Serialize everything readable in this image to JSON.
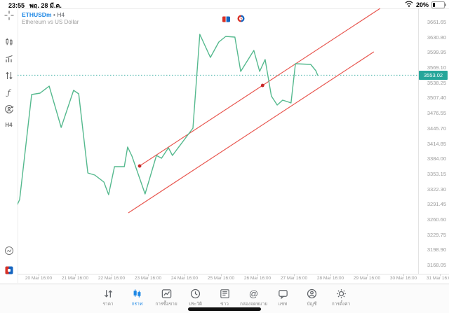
{
  "status_bar": {
    "time": "23:55",
    "date": "พฤ. 28 มี.ค.",
    "battery": "20%"
  },
  "chart_header": {
    "symbol": "ETHUSDm",
    "separator": "•",
    "timeframe": "H4",
    "description": "Ethereum vs US Dollar"
  },
  "left_toolbar": {
    "timeframe": "H4",
    "function_label": "ƒ"
  },
  "price_axis": {
    "labels": [
      "3661.65",
      "3630.80",
      "3599.95",
      "3569.10",
      "3538.25",
      "3507.40",
      "3476.55",
      "3445.70",
      "3414.85",
      "3384.00",
      "3353.15",
      "3322.30",
      "3291.45",
      "3260.60",
      "3229.75",
      "3198.90",
      "3168.05"
    ],
    "current_price": "3553.02"
  },
  "time_axis": {
    "labels": [
      "20 Mar 16:00",
      "21 Mar 16:00",
      "22 Mar 16:00",
      "23 Mar 16:00",
      "24 Mar 16:00",
      "25 Mar 16:00",
      "26 Mar 16:00",
      "27 Mar 16:00",
      "28 Mar 16:00",
      "29 Mar 16:00",
      "30 Mar 16:00",
      "31 Mar 16:00"
    ]
  },
  "chart_data": {
    "type": "line",
    "title": "ETHUSDm H4 — Ethereum vs US Dollar",
    "line_color": "#55b98e",
    "trend_color": "#e85750",
    "current_price_color": "#26a69a",
    "current_price": 3553.02,
    "ylim": [
      3168.05,
      3661.65
    ],
    "y_step": 30.85,
    "x_unit": "days since 20 Mar 16:00",
    "series": [
      [
        -0.58,
        3290.6
      ],
      [
        -0.52,
        3300.6
      ],
      [
        -0.19,
        3513.8
      ],
      [
        0.04,
        3516.6
      ],
      [
        0.29,
        3530.9
      ],
      [
        0.62,
        3447.0
      ],
      [
        0.96,
        3522.3
      ],
      [
        1.1,
        3515.2
      ],
      [
        1.35,
        3354.6
      ],
      [
        1.54,
        3350.3
      ],
      [
        1.79,
        3336.1
      ],
      [
        1.92,
        3310.5
      ],
      [
        2.08,
        3367.4
      ],
      [
        2.35,
        3367.4
      ],
      [
        2.44,
        3407.2
      ],
      [
        2.56,
        3388.7
      ],
      [
        2.92,
        3311.9
      ],
      [
        3.23,
        3390.1
      ],
      [
        3.37,
        3384.4
      ],
      [
        3.56,
        3405.8
      ],
      [
        3.67,
        3390.1
      ],
      [
        4.23,
        3445.6
      ],
      [
        4.42,
        3636.1
      ],
      [
        4.71,
        3589.1
      ],
      [
        4.94,
        3620.4
      ],
      [
        5.13,
        3631.8
      ],
      [
        5.38,
        3630.4
      ],
      [
        5.54,
        3560.7
      ],
      [
        5.9,
        3603.4
      ],
      [
        6.06,
        3560.7
      ],
      [
        6.21,
        3584.9
      ],
      [
        6.38,
        3510.9
      ],
      [
        6.54,
        3492.5
      ],
      [
        6.69,
        3502.4
      ],
      [
        6.81,
        3499.6
      ],
      [
        6.92,
        3496.7
      ],
      [
        7.04,
        3576.3
      ],
      [
        7.46,
        3574.9
      ],
      [
        7.6,
        3562.1
      ],
      [
        7.65,
        3553.02
      ]
    ],
    "trendlines": [
      {
        "name": "ascending-trendline",
        "anchors": [
          [
            2.77,
            3368.8
          ],
          [
            6.14,
            3532.3
          ]
        ],
        "ray": true,
        "show_anchor_dots": true
      },
      {
        "name": "parallel-channel-line",
        "anchors": [
          [
            2.46,
            3273.6
          ],
          [
            9.19,
            3600.5
          ]
        ],
        "ray": false,
        "show_anchor_dots": false
      }
    ],
    "event_markers": [
      "flag-event",
      "clock-event"
    ],
    "legend_position": "none",
    "grid": "off"
  },
  "bottom_nav": {
    "items": [
      {
        "label": "ราคา",
        "active": false
      },
      {
        "label": "กราฟ",
        "active": true
      },
      {
        "label": "การซื้อขาย",
        "active": false
      },
      {
        "label": "ประวัติ",
        "active": false
      },
      {
        "label": "ข่าว",
        "active": false
      },
      {
        "label": "กล่องจดหมาย",
        "active": false
      },
      {
        "label": "แชท",
        "active": false
      },
      {
        "label": "บัญชี",
        "active": false
      },
      {
        "label": "การตั้งค่า",
        "active": false
      }
    ]
  }
}
